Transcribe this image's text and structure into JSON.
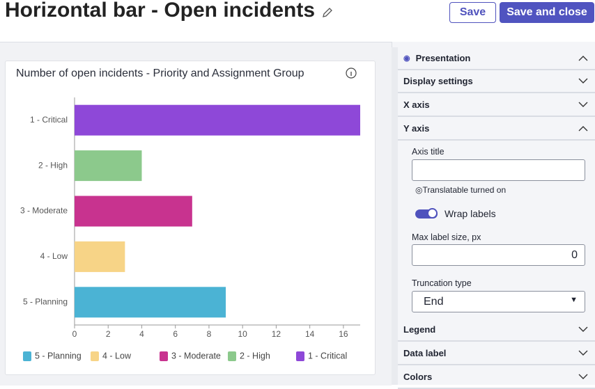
{
  "header": {
    "title": "Horizontal bar - Open incidents",
    "buttons": [
      "Save",
      "Save and close"
    ]
  },
  "chart_data": {
    "type": "hbar",
    "title": "Number of open incidents - Priority and Assignment Group",
    "categories": [
      "1 - Critical",
      "2 - High",
      "3 - Moderate",
      "4 - Low",
      "5 - Planning"
    ],
    "values": [
      17,
      4,
      7,
      3,
      9
    ],
    "colors": [
      "#8e48d8",
      "#8cc98c",
      "#c8338f",
      "#f7d487",
      "#4bb3d4"
    ],
    "xlim": [
      0,
      17
    ],
    "xticks": [
      0,
      2,
      4,
      6,
      8,
      10,
      12,
      14,
      16
    ],
    "legend": "bottom"
  },
  "panel": {
    "top_sections": [
      "Presentation",
      "Display settings",
      "X axis",
      "Y axis"
    ],
    "axis_title_label": "Axis title",
    "translatable": "Translatable turned on",
    "wrap_labels": "Wrap labels",
    "max_label_label": "Max label size, px",
    "max_label_value": 0,
    "truncation_label": "Truncation type",
    "truncation_value": "End",
    "bottom_sections": [
      "Legend",
      "Data label",
      "Colors"
    ]
  }
}
